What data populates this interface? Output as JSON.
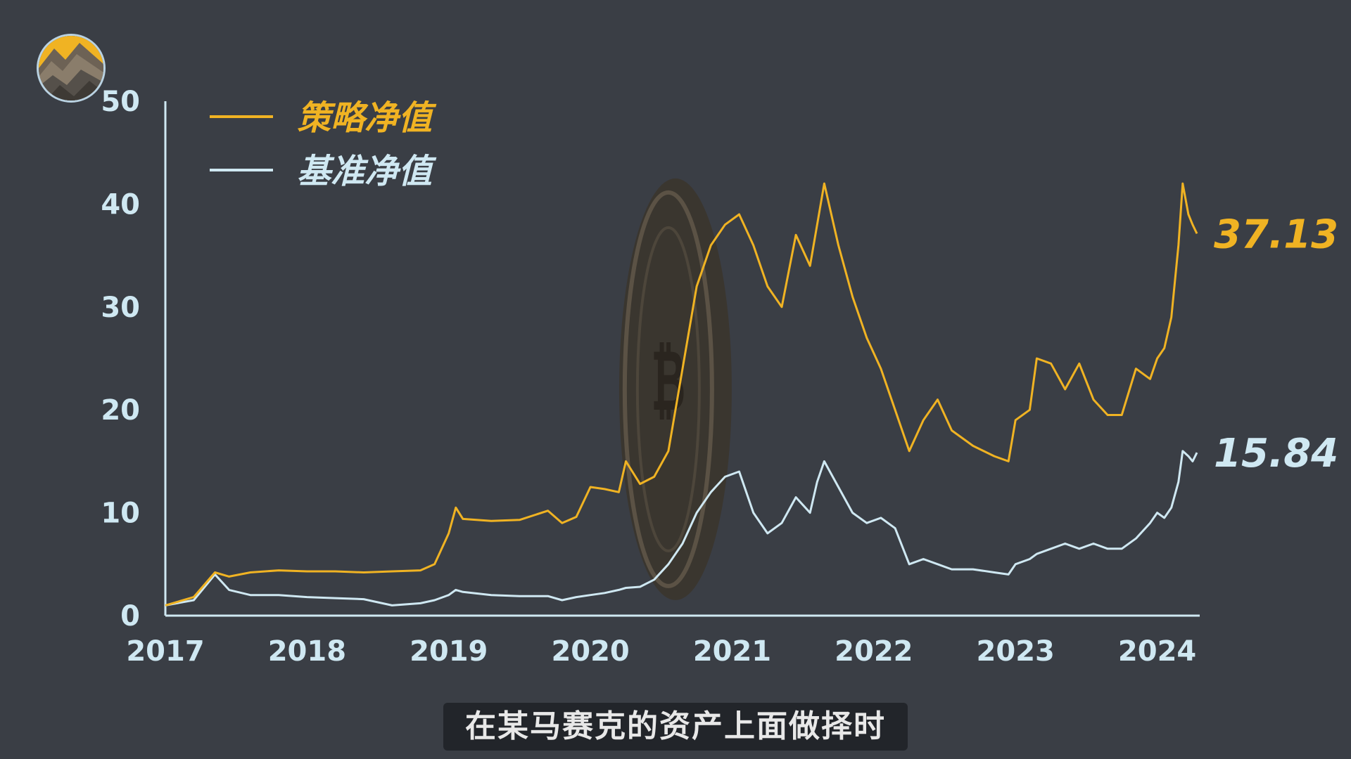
{
  "chart_data": {
    "type": "line",
    "title": "",
    "xlabel": "",
    "ylabel": "",
    "xlim": [
      2017.0,
      2024.3
    ],
    "ylim": [
      0,
      50
    ],
    "yticks": [
      0,
      10,
      20,
      30,
      40,
      50
    ],
    "xticks": [
      "2017",
      "2018",
      "2019",
      "2020",
      "2021",
      "2022",
      "2023",
      "2024"
    ],
    "legend_position": "top-left",
    "grid": false,
    "series": [
      {
        "name": "策略净值",
        "color": "#f0b323",
        "end_label": "37.13",
        "x": [
          2017.0,
          2017.2,
          2017.35,
          2017.45,
          2017.6,
          2017.8,
          2018.0,
          2018.2,
          2018.4,
          2018.6,
          2018.8,
          2018.9,
          2019.0,
          2019.05,
          2019.1,
          2019.3,
          2019.5,
          2019.7,
          2019.8,
          2019.9,
          2020.0,
          2020.1,
          2020.2,
          2020.25,
          2020.35,
          2020.45,
          2020.55,
          2020.65,
          2020.75,
          2020.85,
          2020.95,
          2021.05,
          2021.15,
          2021.25,
          2021.35,
          2021.45,
          2021.55,
          2021.6,
          2021.65,
          2021.75,
          2021.85,
          2021.95,
          2022.05,
          2022.15,
          2022.25,
          2022.35,
          2022.45,
          2022.55,
          2022.7,
          2022.85,
          2022.95,
          2023.0,
          2023.1,
          2023.15,
          2023.25,
          2023.35,
          2023.45,
          2023.55,
          2023.65,
          2023.75,
          2023.85,
          2023.95,
          2024.0,
          2024.05,
          2024.1,
          2024.15,
          2024.18,
          2024.22,
          2024.25,
          2024.28
        ],
        "values": [
          1.0,
          1.8,
          4.2,
          3.8,
          4.2,
          4.4,
          4.3,
          4.3,
          4.2,
          4.3,
          4.4,
          5.0,
          8.0,
          10.5,
          9.4,
          9.2,
          9.3,
          10.2,
          9.0,
          9.6,
          12.5,
          12.3,
          12.0,
          15.0,
          12.8,
          13.5,
          16.0,
          24.0,
          32.0,
          36.0,
          38.0,
          39.0,
          36.0,
          32.0,
          30.0,
          37.0,
          34.0,
          38.0,
          42.0,
          36.0,
          31.0,
          27.0,
          24.0,
          20.0,
          16.0,
          19.0,
          21.0,
          18.0,
          16.5,
          15.5,
          15.0,
          19.0,
          20.0,
          25.0,
          24.5,
          22.0,
          24.5,
          21.0,
          19.5,
          19.5,
          24.0,
          23.0,
          25.0,
          26.0,
          29.0,
          36.0,
          42.0,
          39.0,
          38.0,
          37.13
        ]
      },
      {
        "name": "基准净值",
        "color": "#cfe8f2",
        "end_label": "15.84",
        "x": [
          2017.0,
          2017.2,
          2017.35,
          2017.45,
          2017.6,
          2017.8,
          2018.0,
          2018.2,
          2018.4,
          2018.6,
          2018.8,
          2018.9,
          2019.0,
          2019.05,
          2019.1,
          2019.3,
          2019.5,
          2019.7,
          2019.8,
          2019.9,
          2020.0,
          2020.1,
          2020.2,
          2020.25,
          2020.35,
          2020.45,
          2020.55,
          2020.65,
          2020.75,
          2020.85,
          2020.95,
          2021.05,
          2021.15,
          2021.25,
          2021.35,
          2021.45,
          2021.55,
          2021.6,
          2021.65,
          2021.75,
          2021.85,
          2021.95,
          2022.05,
          2022.15,
          2022.25,
          2022.35,
          2022.45,
          2022.55,
          2022.7,
          2022.85,
          2022.95,
          2023.0,
          2023.1,
          2023.15,
          2023.25,
          2023.35,
          2023.45,
          2023.55,
          2023.65,
          2023.75,
          2023.85,
          2023.95,
          2024.0,
          2024.05,
          2024.1,
          2024.15,
          2024.18,
          2024.22,
          2024.25,
          2024.28
        ],
        "values": [
          1.0,
          1.5,
          4.0,
          2.5,
          2.0,
          2.0,
          1.8,
          1.7,
          1.6,
          1.0,
          1.2,
          1.5,
          2.0,
          2.5,
          2.3,
          2.0,
          1.9,
          1.9,
          1.5,
          1.8,
          2.0,
          2.2,
          2.5,
          2.7,
          2.8,
          3.5,
          5.0,
          7.0,
          10.0,
          12.0,
          13.5,
          14.0,
          10.0,
          8.0,
          9.0,
          11.5,
          10.0,
          13.0,
          15.0,
          12.5,
          10.0,
          9.0,
          9.5,
          8.5,
          5.0,
          5.5,
          5.0,
          4.5,
          4.5,
          4.2,
          4.0,
          5.0,
          5.5,
          6.0,
          6.5,
          7.0,
          6.5,
          7.0,
          6.5,
          6.5,
          7.5,
          9.0,
          10.0,
          9.5,
          10.5,
          13.0,
          16.0,
          15.5,
          15.0,
          15.84
        ]
      }
    ]
  },
  "subtitle": "在某马赛克的资产上面做择时",
  "colors": {
    "background": "#0e1116",
    "axis": "#cfe8f2",
    "tick_label": "#cfe8f2",
    "grid_marker": "#3a3e45"
  },
  "icons": {
    "logo": "mountain-logo-icon",
    "coin": "bitcoin-coin-icon"
  }
}
